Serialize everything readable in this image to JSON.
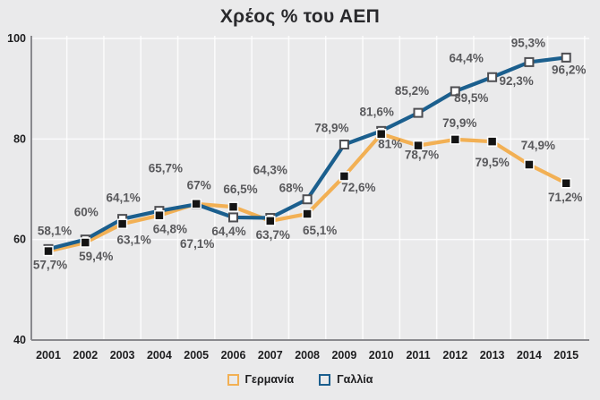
{
  "colors": {
    "background": "#EAEAEB",
    "gridline": "#FFFFFF",
    "axis": "#8A8A8E",
    "data_label": "#59595C",
    "tick_label": "#1E1E20",
    "germany_marker_fill": "#141414",
    "france_marker_fill": "#FFFFFF",
    "france_marker_border": "#4E4E52"
  },
  "chart_data": {
    "type": "line",
    "title": "Χρέος % του ΑΕΠ",
    "xlabel": "",
    "ylabel": "",
    "x": [
      2001,
      2002,
      2003,
      2004,
      2005,
      2006,
      2007,
      2008,
      2009,
      2010,
      2011,
      2012,
      2013,
      2014,
      2015
    ],
    "ylim": [
      40,
      100
    ],
    "yticks": [
      40,
      60,
      80,
      100
    ],
    "grid": true,
    "legend_position": "bottom",
    "series": [
      {
        "name": "Γερμανία",
        "color": "#F2B054",
        "marker": "filled-black-square",
        "values": [
          57.7,
          59.4,
          63.1,
          64.8,
          67.1,
          66.5,
          63.7,
          65.1,
          72.6,
          81,
          78.7,
          79.9,
          79.5,
          74.9,
          71.2
        ],
        "labels": [
          "57,7%",
          "59,4%",
          "63,1%",
          "64,8%",
          "67,1%",
          "66,5%",
          "63,7%",
          "65,1%",
          "72,6%",
          "81%",
          "78,7%",
          "79,9%",
          "79,5%",
          "74,9%",
          "71,2%"
        ],
        "label_offsets": [
          [
            2,
            20
          ],
          [
            12,
            20
          ],
          [
            13,
            22
          ],
          [
            12,
            20
          ],
          [
            1,
            49
          ],
          [
            8,
            -15
          ],
          [
            3,
            20
          ],
          [
            14,
            23
          ],
          [
            16,
            17
          ],
          [
            10,
            16
          ],
          [
            4,
            15
          ],
          [
            5,
            -14
          ],
          [
            0,
            28
          ],
          [
            10,
            -17
          ],
          [
            -1,
            20
          ]
        ]
      },
      {
        "name": "Γαλλία",
        "color": "#1B5F8E",
        "marker": "open-white-square",
        "values": [
          58.1,
          60,
          64.1,
          65.7,
          67,
          64.4,
          64.3,
          68,
          78.9,
          81.6,
          85.2,
          89.5,
          92.3,
          95.3,
          96.2
        ],
        "labels": [
          "58,1%",
          "60%",
          "64,1%",
          "65,7%",
          "67%",
          "64,4%",
          "64,3%",
          "68%",
          "78,9%",
          "81,6%",
          "85,2%",
          "89,5%",
          "92,3%",
          "95,3%",
          "96,2%"
        ],
        "label_offsets": [
          [
            7,
            -16
          ],
          [
            1,
            -26
          ],
          [
            1,
            -19
          ],
          [
            7,
            -43
          ],
          [
            3,
            -17
          ],
          [
            -5,
            20
          ],
          [
            0,
            -49
          ],
          [
            -18,
            -8
          ],
          [
            -14,
            -14
          ],
          [
            -5,
            -17
          ],
          [
            -7,
            -20
          ],
          [
            18,
            12
          ],
          [
            27,
            9
          ],
          [
            -1,
            -17
          ],
          [
            3,
            18
          ]
        ]
      }
    ],
    "annotations": [
      {
        "text": "64,4%",
        "year": 2012.3,
        "value": 95.3
      }
    ]
  }
}
